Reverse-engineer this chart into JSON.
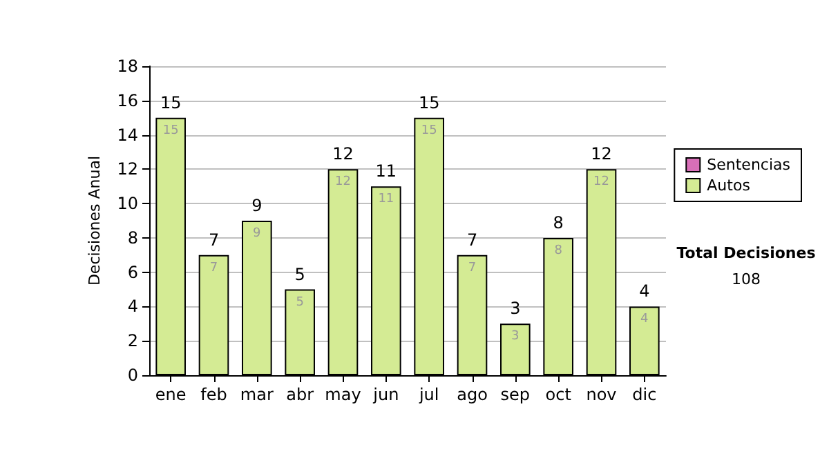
{
  "chart_data": {
    "type": "bar",
    "ylabel": "Decisiones Anual",
    "categories": [
      "ene",
      "feb",
      "mar",
      "abr",
      "may",
      "jun",
      "jul",
      "ago",
      "sep",
      "oct",
      "nov",
      "dic"
    ],
    "series": [
      {
        "name": "Sentencias",
        "color": "#d86fb8",
        "values": [
          0,
          0,
          0,
          0,
          0,
          0,
          0,
          0,
          0,
          0,
          0,
          0
        ]
      },
      {
        "name": "Autos",
        "color": "#d4eb94",
        "values": [
          15,
          7,
          9,
          5,
          12,
          11,
          15,
          7,
          3,
          8,
          12,
          4
        ],
        "value_labels": [
          "15",
          "7",
          "9",
          "5",
          "12",
          "11",
          "15",
          "7",
          "3",
          "8",
          "12",
          "4"
        ]
      }
    ],
    "stacked": true,
    "totals": [
      "15",
      "7",
      "9",
      "5",
      "12",
      "11",
      "15",
      "7",
      "3",
      "8",
      "12",
      "4"
    ],
    "ylim": [
      0,
      18
    ],
    "yticks": [
      0,
      2,
      4,
      6,
      8,
      10,
      12,
      14,
      16,
      18
    ],
    "grid": "y",
    "legend": "right",
    "annotations": [
      "Total Decisiones",
      "108"
    ]
  }
}
